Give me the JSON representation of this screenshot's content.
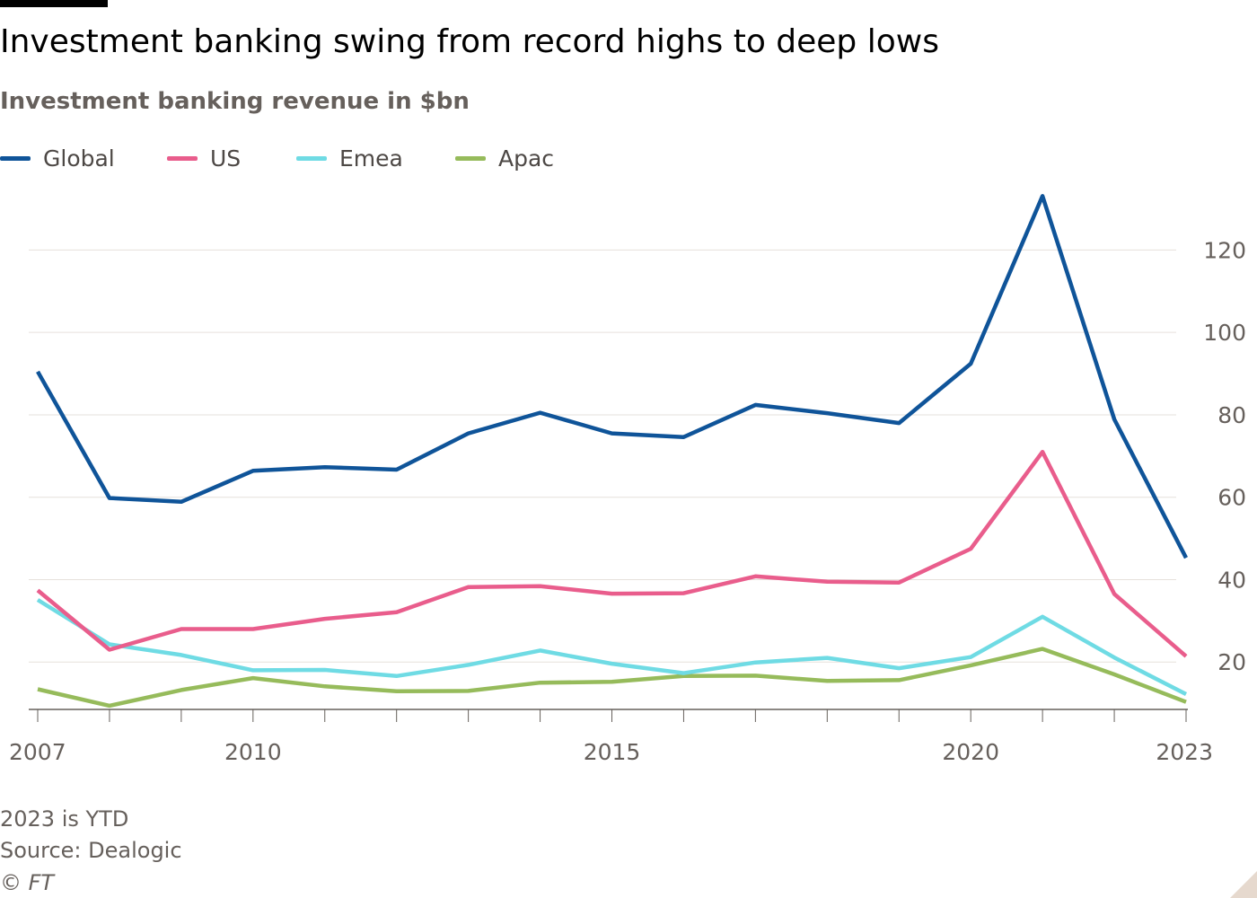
{
  "header": {
    "title": "Investment banking swing from record highs to deep lows",
    "subtitle": "Investment banking revenue in $bn"
  },
  "footer": {
    "note": "2023 is YTD",
    "source": "Source: Dealogic",
    "copyright": "© FT"
  },
  "colors": {
    "Global": "#0f5499",
    "US": "#e95d8c",
    "Emea": "#6fdbe4",
    "Apac": "#96bb5b",
    "gridline": "#e6e1dc",
    "axis": "#66605c"
  },
  "chart_data": {
    "type": "line",
    "title": "Investment banking swing from record highs to deep lows",
    "subtitle": "Investment banking revenue in $bn",
    "xlabel": "",
    "ylabel": "",
    "x": [
      2007,
      2008,
      2009,
      2010,
      2011,
      2012,
      2013,
      2014,
      2015,
      2016,
      2017,
      2018,
      2019,
      2020,
      2021,
      2022,
      2023
    ],
    "x_tick_labels": [
      "2007",
      "2010",
      "2015",
      "2020",
      "2023"
    ],
    "x_tick_values": [
      2007,
      2010,
      2015,
      2020,
      2023
    ],
    "xlim": [
      2007,
      2023
    ],
    "y_ticks": [
      20,
      40,
      60,
      80,
      100,
      120
    ],
    "y_tick_labels": [
      "20",
      "40",
      "60",
      "80",
      "100",
      "120"
    ],
    "ylim": [
      8.5,
      136
    ],
    "y_axis_side": "right",
    "grid": true,
    "legend_position": "top-left",
    "series": [
      {
        "name": "Global",
        "values": [
          90.5,
          59.8,
          58.9,
          66.4,
          67.3,
          66.7,
          75.5,
          80.5,
          75.5,
          74.6,
          82.4,
          80.4,
          78.0,
          92.4,
          133.1,
          78.9,
          45.3
        ]
      },
      {
        "name": "US",
        "values": [
          37.4,
          23.0,
          28.0,
          28.0,
          30.5,
          32.1,
          38.2,
          38.4,
          36.6,
          36.7,
          40.8,
          39.5,
          39.3,
          47.5,
          71.0,
          36.5,
          21.4
        ]
      },
      {
        "name": "Emea",
        "values": [
          35.1,
          24.3,
          21.7,
          18.0,
          18.1,
          16.6,
          19.3,
          22.8,
          19.6,
          17.3,
          19.9,
          21.0,
          18.5,
          21.2,
          31.0,
          21.1,
          12.2
        ]
      },
      {
        "name": "Apac",
        "values": [
          13.4,
          9.4,
          13.2,
          16.1,
          14.1,
          12.9,
          13.0,
          15.0,
          15.2,
          16.6,
          16.7,
          15.4,
          15.6,
          19.2,
          23.2,
          17.0,
          10.3
        ]
      }
    ]
  }
}
